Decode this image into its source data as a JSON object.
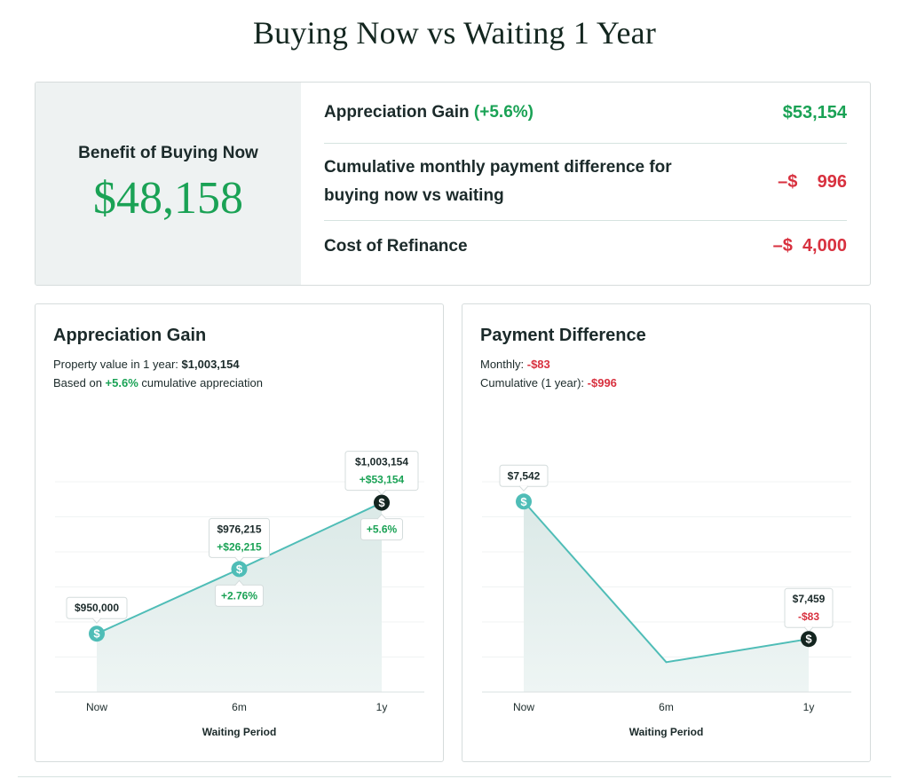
{
  "page": {
    "title": "Buying Now vs Waiting 1 Year"
  },
  "summary": {
    "benefit_label": "Benefit of Buying Now",
    "benefit_value": "$48,158",
    "rows": [
      {
        "label": "Appreciation Gain",
        "label_pct": "(+5.6%)",
        "value": "$53,154",
        "sign": "pos"
      },
      {
        "label": "Cumulative monthly payment difference for buying now vs waiting",
        "label_pct": "",
        "value": "–$    996",
        "sign": "neg"
      },
      {
        "label": "Cost of Refinance",
        "label_pct": "",
        "value": "–$  4,000",
        "sign": "neg"
      }
    ]
  },
  "appreciation_card": {
    "title": "Appreciation Gain",
    "sub1_prefix": "Property value in 1 year: ",
    "sub1_value": "$1,003,154",
    "sub2_prefix": "Based on ",
    "sub2_pct": "+5.6%",
    "sub2_suffix": " cumulative appreciation"
  },
  "payment_card": {
    "title": "Payment Difference",
    "sub1_prefix": "Monthly: ",
    "sub1_value": "-$83",
    "sub2_prefix": "Cumulative (1 year): ",
    "sub2_value": "-$996"
  },
  "colors": {
    "accent_teal": "#4fbdb7",
    "positive_green": "#1aa255",
    "negative_red": "#d8313f",
    "dark_marker": "#13241f"
  },
  "chart_data": [
    {
      "type": "area",
      "title": "Appreciation Gain",
      "xlabel": "Waiting Period",
      "ylabel": "",
      "categories": [
        "Now",
        "6m",
        "1y"
      ],
      "values": [
        950000,
        976215,
        1003154
      ],
      "ylim": [
        940000,
        1012000
      ],
      "value_labels": [
        "$950,000",
        "$976,215",
        "$1,003,154"
      ],
      "gain_labels": [
        "",
        "+$26,215",
        "+$53,154"
      ],
      "pct_labels": [
        "",
        "+2.76%",
        "+5.6%"
      ],
      "marker_icon": "dollar-icon",
      "grid": "horizontal"
    },
    {
      "type": "area",
      "title": "Payment Difference",
      "xlabel": "Waiting Period",
      "ylabel": "",
      "categories": [
        "Now",
        "6m",
        "1y"
      ],
      "values": [
        7542,
        7445,
        7459
      ],
      "ylim": [
        7435,
        7570
      ],
      "value_labels": [
        "$7,542",
        "",
        "$7,459"
      ],
      "diff_labels": [
        "",
        "",
        "-$83"
      ],
      "marker_icon": "dollar-icon",
      "grid": "horizontal"
    }
  ]
}
